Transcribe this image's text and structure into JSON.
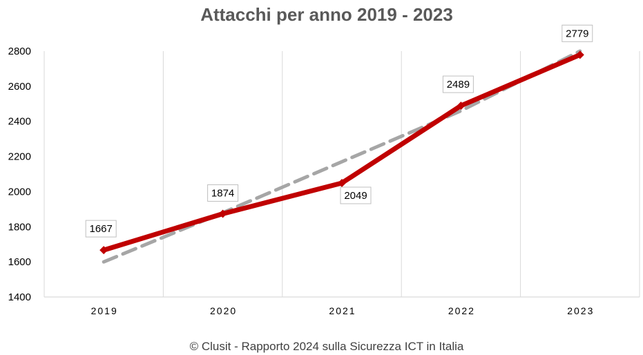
{
  "chart_data": {
    "type": "line",
    "title": "Attacchi per anno 2019 - 2023",
    "categories": [
      "2019",
      "2020",
      "2021",
      "2022",
      "2023"
    ],
    "series": [
      {
        "values": [
          1667,
          1874,
          2049,
          2489,
          2779
        ],
        "color": "#C00000",
        "style": "solid",
        "data_labels": [
          "1667",
          "1874",
          "2049",
          "2489",
          "2779"
        ]
      },
      {
        "values": [
          1600,
          1880,
          2170,
          2460,
          2800
        ],
        "color": "#A6A6A6",
        "style": "dashed"
      }
    ],
    "ylim": [
      1400,
      2800
    ],
    "yticks": [
      "1400",
      "1600",
      "1800",
      "2000",
      "2200",
      "2400",
      "2600",
      "2800"
    ],
    "grid": "vertical",
    "xlabel": "",
    "ylabel": ""
  },
  "footer": "© Clusit - Rapporto 2024 sulla Sicurezza ICT in Italia"
}
